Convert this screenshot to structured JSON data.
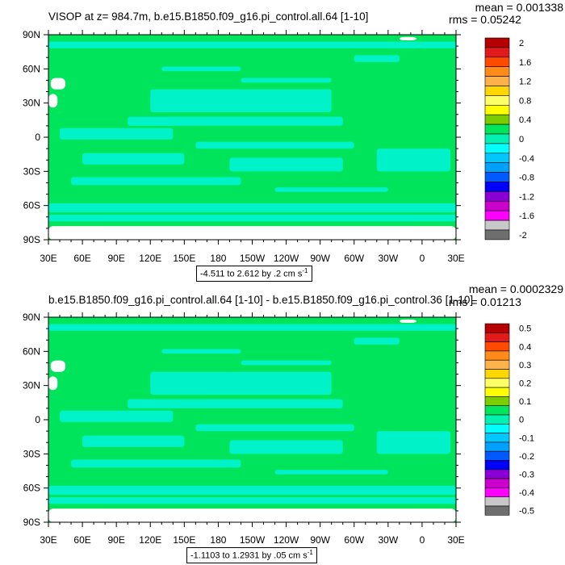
{
  "chart_data": [
    {
      "type": "heatmap",
      "title": "VISOP at z= 984.7m, b.e15.B1850.f09_g16.pi_control.all.64 [1-10]",
      "stats": {
        "mean": "mean = 0.001338",
        "rms": "rms = 0.05242"
      },
      "range_label": "-4.511 to 2.612 by .2 cm s",
      "range_unit_exponent": "-1",
      "x_ticks": [
        "30E",
        "60E",
        "90E",
        "120E",
        "150E",
        "180",
        "150W",
        "120W",
        "90W",
        "60W",
        "30W",
        "0",
        "30E"
      ],
      "y_ticks": [
        "90N",
        "60N",
        "30N",
        "0",
        "30S",
        "60S",
        "90S"
      ],
      "xlim": [
        30,
        390
      ],
      "ylim": [
        -90,
        90
      ],
      "colorbar": {
        "levels": [
          2,
          1.6,
          1.2,
          0.8,
          0.4,
          0,
          -0.4,
          -0.8,
          -1.2,
          -1.6,
          -2
        ],
        "labels": [
          "2",
          "1.6",
          "1.2",
          "0.8",
          "0.4",
          "0",
          "-0.4",
          "-0.8",
          "-1.2",
          "-1.6",
          "-2"
        ],
        "colors": [
          "#b40000",
          "#e31a1c",
          "#ff4a00",
          "#ff8c1a",
          "#ffb14a",
          "#ffd700",
          "#ffff66",
          "#ffff00",
          "#7ccd00",
          "#00e65c",
          "#00f2b0",
          "#00ffff",
          "#00c8ff",
          "#00a0ff",
          "#005aff",
          "#0000ff",
          "#8a00d4",
          "#cc00cc",
          "#ff00ff",
          "#c8c8c8",
          "#6e6e6e"
        ]
      },
      "fill_colors": {
        "ocean": "#00e45c",
        "anomaly": "#00f2c8",
        "land": "#ffffff"
      }
    },
    {
      "type": "heatmap",
      "title": "b.e15.B1850.f09_g16.pi_control.all.64 [1-10] - b.e15.B1850.f09_g16.pi_control.36 [1-10]",
      "stats": {
        "mean": "mean = 0.0002329",
        "rms": "rms = 0.01213"
      },
      "range_label": "-1.1103 to 1.2931 by .05 cm s",
      "range_unit_exponent": "-1",
      "x_ticks": [
        "30E",
        "60E",
        "90E",
        "120E",
        "150E",
        "180",
        "150W",
        "120W",
        "90W",
        "60W",
        "30W",
        "0",
        "30E"
      ],
      "y_ticks": [
        "90N",
        "60N",
        "30N",
        "0",
        "30S",
        "60S",
        "90S"
      ],
      "xlim": [
        30,
        390
      ],
      "ylim": [
        -90,
        90
      ],
      "colorbar": {
        "levels": [
          0.5,
          0.4,
          0.3,
          0.2,
          0.1,
          0,
          -0.1,
          -0.2,
          -0.3,
          -0.4,
          -0.5
        ],
        "labels": [
          "0.5",
          "0.4",
          "0.3",
          "0.2",
          "0.1",
          "0",
          "-0.1",
          "-0.2",
          "-0.3",
          "-0.4",
          "-0.5"
        ],
        "colors": [
          "#b40000",
          "#e31a1c",
          "#ff4a00",
          "#ff8c1a",
          "#ffb14a",
          "#ffd700",
          "#ffff66",
          "#ffff00",
          "#7ccd00",
          "#00e65c",
          "#00f2b0",
          "#00ffff",
          "#00c8ff",
          "#00a0ff",
          "#005aff",
          "#0000ff",
          "#8a00d4",
          "#cc00cc",
          "#ff00ff",
          "#c8c8c8",
          "#6e6e6e"
        ]
      },
      "fill_colors": {
        "ocean": "#00e45c",
        "anomaly": "#00f2c8",
        "land": "#ffffff"
      }
    }
  ]
}
